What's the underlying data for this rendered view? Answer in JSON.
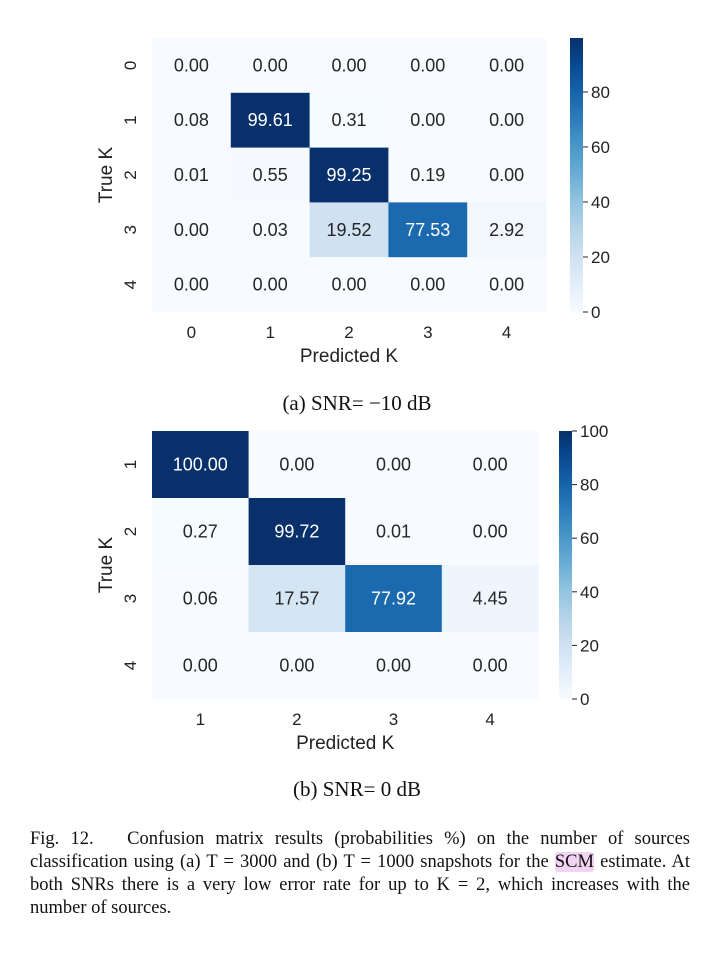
{
  "chart_data": [
    {
      "type": "heatmap",
      "subtitle": "(a) SNR= −10 dB",
      "xlabel": "Predicted K",
      "ylabel": "True K",
      "x_labels": [
        "0",
        "1",
        "2",
        "3",
        "4"
      ],
      "y_labels": [
        "0",
        "1",
        "2",
        "3",
        "4"
      ],
      "values": [
        [
          0.0,
          0.0,
          0.0,
          0.0,
          0.0
        ],
        [
          0.08,
          99.61,
          0.31,
          0.0,
          0.0
        ],
        [
          0.01,
          0.55,
          99.25,
          0.19,
          0.0
        ],
        [
          0.0,
          0.03,
          19.52,
          77.53,
          2.92
        ],
        [
          0.0,
          0.0,
          0.0,
          0.0,
          0.0
        ]
      ],
      "value_labels": [
        [
          "0.00",
          "0.00",
          "0.00",
          "0.00",
          "0.00"
        ],
        [
          "0.08",
          "99.61",
          "0.31",
          "0.00",
          "0.00"
        ],
        [
          "0.01",
          "0.55",
          "99.25",
          "0.19",
          "0.00"
        ],
        [
          "0.00",
          "0.03",
          "19.52",
          "77.53",
          "2.92"
        ],
        [
          "0.00",
          "0.00",
          "0.00",
          "0.00",
          "0.00"
        ]
      ],
      "colorbar": {
        "min": 0,
        "max": 99.61,
        "ticks": [
          0,
          20,
          40,
          60,
          80
        ],
        "tick_labels": [
          "0",
          "20",
          "40",
          "60",
          "80"
        ],
        "colormap": "Blues"
      }
    },
    {
      "type": "heatmap",
      "subtitle": "(b) SNR= 0 dB",
      "xlabel": "Predicted K",
      "ylabel": "True K",
      "x_labels": [
        "1",
        "2",
        "3",
        "4"
      ],
      "y_labels": [
        "1",
        "2",
        "3",
        "4"
      ],
      "values": [
        [
          100.0,
          0.0,
          0.0,
          0.0
        ],
        [
          0.27,
          99.72,
          0.01,
          0.0
        ],
        [
          0.06,
          17.57,
          77.92,
          4.45
        ],
        [
          0.0,
          0.0,
          0.0,
          0.0
        ]
      ],
      "value_labels": [
        [
          "100.00",
          "0.00",
          "0.00",
          "0.00"
        ],
        [
          "0.27",
          "99.72",
          "0.01",
          "0.00"
        ],
        [
          "0.06",
          "17.57",
          "77.92",
          "4.45"
        ],
        [
          "0.00",
          "0.00",
          "0.00",
          "0.00"
        ]
      ],
      "colorbar": {
        "min": 0,
        "max": 100,
        "ticks": [
          0,
          20,
          40,
          60,
          80,
          100
        ],
        "tick_labels": [
          "0",
          "20",
          "40",
          "60",
          "80",
          "100"
        ],
        "colormap": "Blues"
      }
    }
  ],
  "caption": {
    "label": "Fig. 12.",
    "text_before": "Confusion matrix results (probabilities %) on the number of sources classification using (a) T = 3000 and (b) T = 1000 snapshots for the ",
    "highlight": "SCM",
    "text_after": " estimate. At both SNRs there is a very low error rate for up to K = 2, which increases with the number of sources."
  }
}
